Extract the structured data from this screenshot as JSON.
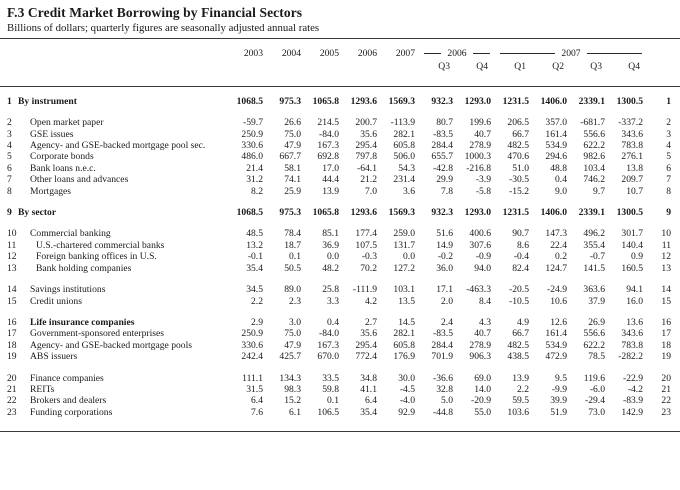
{
  "title": "F.3 Credit Market Borrowing by Financial Sectors",
  "subtitle": "Billions of dollars; quarterly figures are seasonally adjusted annual rates",
  "table": {
    "year_columns": [
      "2003",
      "2004",
      "2005",
      "2006",
      "2007"
    ],
    "quarter_groups": [
      {
        "year": "2006",
        "quarters": [
          "Q3",
          "Q4"
        ]
      },
      {
        "year": "2007",
        "quarters": [
          "Q1",
          "Q2",
          "Q3",
          "Q4"
        ]
      }
    ],
    "rows": [
      {
        "num": "1",
        "label": "By instrument",
        "indent": 0,
        "bold": true,
        "bold_label": false,
        "gap_before": false,
        "values": [
          "1068.5",
          "975.3",
          "1065.8",
          "1293.6",
          "1569.3",
          "932.3",
          "1293.0",
          "1231.5",
          "1406.0",
          "2339.1",
          "1300.5"
        ]
      },
      {
        "num": "2",
        "label": "Open market paper",
        "indent": 1,
        "bold": false,
        "bold_label": false,
        "gap_before": true,
        "values": [
          "-59.7",
          "26.6",
          "214.5",
          "200.7",
          "-113.9",
          "80.7",
          "199.6",
          "206.5",
          "357.0",
          "-681.7",
          "-337.2"
        ]
      },
      {
        "num": "3",
        "label": "GSE issues",
        "indent": 1,
        "bold": false,
        "bold_label": false,
        "gap_before": false,
        "values": [
          "250.9",
          "75.0",
          "-84.0",
          "35.6",
          "282.1",
          "-83.5",
          "40.7",
          "66.7",
          "161.4",
          "556.6",
          "343.6"
        ]
      },
      {
        "num": "4",
        "label": "Agency- and GSE-backed mortgage pool sec.",
        "indent": 1,
        "bold": false,
        "bold_label": false,
        "gap_before": false,
        "values": [
          "330.6",
          "47.9",
          "167.3",
          "295.4",
          "605.8",
          "284.4",
          "278.9",
          "482.5",
          "534.9",
          "622.2",
          "783.8"
        ]
      },
      {
        "num": "5",
        "label": "Corporate bonds",
        "indent": 1,
        "bold": false,
        "bold_label": false,
        "gap_before": false,
        "values": [
          "486.0",
          "667.7",
          "692.8",
          "797.8",
          "506.0",
          "655.7",
          "1000.3",
          "470.6",
          "294.6",
          "982.6",
          "276.1"
        ]
      },
      {
        "num": "6",
        "label": "Bank loans n.e.c.",
        "indent": 1,
        "bold": false,
        "bold_label": false,
        "gap_before": false,
        "values": [
          "21.4",
          "58.1",
          "17.0",
          "-64.1",
          "54.3",
          "-42.8",
          "-216.8",
          "51.0",
          "48.8",
          "103.4",
          "13.8"
        ]
      },
      {
        "num": "7",
        "label": "Other loans and advances",
        "indent": 1,
        "bold": false,
        "bold_label": false,
        "gap_before": false,
        "values": [
          "31.2",
          "74.1",
          "44.4",
          "21.2",
          "231.4",
          "29.9",
          "-3.9",
          "-30.5",
          "0.4",
          "746.2",
          "209.7"
        ]
      },
      {
        "num": "8",
        "label": "Mortgages",
        "indent": 1,
        "bold": false,
        "bold_label": false,
        "gap_before": false,
        "values": [
          "8.2",
          "25.9",
          "13.9",
          "7.0",
          "3.6",
          "7.8",
          "-5.8",
          "-15.2",
          "9.0",
          "9.7",
          "10.7"
        ]
      },
      {
        "num": "9",
        "label": "By sector",
        "indent": 0,
        "bold": true,
        "bold_label": false,
        "gap_before": true,
        "values": [
          "1068.5",
          "975.3",
          "1065.8",
          "1293.6",
          "1569.3",
          "932.3",
          "1293.0",
          "1231.5",
          "1406.0",
          "2339.1",
          "1300.5"
        ]
      },
      {
        "num": "10",
        "label": "Commercial banking",
        "indent": 1,
        "bold": false,
        "bold_label": false,
        "gap_before": true,
        "values": [
          "48.5",
          "78.4",
          "85.1",
          "177.4",
          "259.0",
          "51.6",
          "400.6",
          "90.7",
          "147.3",
          "496.2",
          "301.7"
        ]
      },
      {
        "num": "11",
        "label": "U.S.-chartered commercial banks",
        "indent": 2,
        "bold": false,
        "bold_label": false,
        "gap_before": false,
        "values": [
          "13.2",
          "18.7",
          "36.9",
          "107.5",
          "131.7",
          "14.9",
          "307.6",
          "8.6",
          "22.4",
          "355.4",
          "140.4"
        ]
      },
      {
        "num": "12",
        "label": "Foreign banking offices in U.S.",
        "indent": 2,
        "bold": false,
        "bold_label": false,
        "gap_before": false,
        "values": [
          "-0.1",
          "0.1",
          "0.0",
          "-0.3",
          "0.0",
          "-0.2",
          "-0.9",
          "-0.4",
          "0.2",
          "-0.7",
          "0.9"
        ]
      },
      {
        "num": "13",
        "label": "Bank holding companies",
        "indent": 2,
        "bold": false,
        "bold_label": false,
        "gap_before": false,
        "values": [
          "35.4",
          "50.5",
          "48.2",
          "70.2",
          "127.2",
          "36.0",
          "94.0",
          "82.4",
          "124.7",
          "141.5",
          "160.5"
        ]
      },
      {
        "num": "14",
        "label": "Savings institutions",
        "indent": 1,
        "bold": false,
        "bold_label": false,
        "gap_before": true,
        "values": [
          "34.5",
          "89.0",
          "25.8",
          "-111.9",
          "103.1",
          "17.1",
          "-463.3",
          "-20.5",
          "-24.9",
          "363.6",
          "94.1"
        ]
      },
      {
        "num": "15",
        "label": "Credit unions",
        "indent": 1,
        "bold": false,
        "bold_label": false,
        "gap_before": false,
        "values": [
          "2.2",
          "2.3",
          "3.3",
          "4.2",
          "13.5",
          "2.0",
          "8.4",
          "-10.5",
          "10.6",
          "37.9",
          "16.0"
        ]
      },
      {
        "num": "16",
        "label": "Life insurance companies",
        "indent": 1,
        "bold": false,
        "bold_label": true,
        "gap_before": true,
        "values": [
          "2.9",
          "3.0",
          "0.4",
          "2.7",
          "14.5",
          "2.4",
          "4.3",
          "4.9",
          "12.6",
          "26.9",
          "13.6"
        ]
      },
      {
        "num": "17",
        "label": "Government-sponsored enterprises",
        "indent": 1,
        "bold": false,
        "bold_label": false,
        "gap_before": false,
        "values": [
          "250.9",
          "75.0",
          "-84.0",
          "35.6",
          "282.1",
          "-83.5",
          "40.7",
          "66.7",
          "161.4",
          "556.6",
          "343.6"
        ]
      },
      {
        "num": "18",
        "label": "Agency- and GSE-backed mortgage pools",
        "indent": 1,
        "bold": false,
        "bold_label": false,
        "gap_before": false,
        "values": [
          "330.6",
          "47.9",
          "167.3",
          "295.4",
          "605.8",
          "284.4",
          "278.9",
          "482.5",
          "534.9",
          "622.2",
          "783.8"
        ]
      },
      {
        "num": "19",
        "label": "ABS issuers",
        "indent": 1,
        "bold": false,
        "bold_label": false,
        "gap_before": false,
        "values": [
          "242.4",
          "425.7",
          "670.0",
          "772.4",
          "176.9",
          "701.9",
          "906.3",
          "438.5",
          "472.9",
          "78.5",
          "-282.2"
        ]
      },
      {
        "num": "20",
        "label": "Finance companies",
        "indent": 1,
        "bold": false,
        "bold_label": false,
        "gap_before": true,
        "values": [
          "111.1",
          "134.3",
          "33.5",
          "34.8",
          "30.0",
          "-36.6",
          "69.0",
          "13.9",
          "9.5",
          "119.6",
          "-22.9"
        ]
      },
      {
        "num": "21",
        "label": "REITs",
        "indent": 1,
        "bold": false,
        "bold_label": false,
        "gap_before": false,
        "values": [
          "31.5",
          "98.3",
          "59.8",
          "41.1",
          "-4.5",
          "32.8",
          "14.0",
          "2.2",
          "-9.9",
          "-6.0",
          "-4.2"
        ]
      },
      {
        "num": "22",
        "label": "Brokers and dealers",
        "indent": 1,
        "bold": false,
        "bold_label": false,
        "gap_before": false,
        "values": [
          "6.4",
          "15.2",
          "0.1",
          "6.4",
          "-4.0",
          "5.0",
          "-20.9",
          "59.5",
          "39.9",
          "-29.4",
          "-83.9"
        ]
      },
      {
        "num": "23",
        "label": "Funding corporations",
        "indent": 1,
        "bold": false,
        "bold_label": false,
        "gap_before": false,
        "values": [
          "7.6",
          "6.1",
          "106.5",
          "35.4",
          "92.9",
          "-44.8",
          "55.0",
          "103.6",
          "51.9",
          "73.0",
          "142.9"
        ]
      }
    ]
  }
}
